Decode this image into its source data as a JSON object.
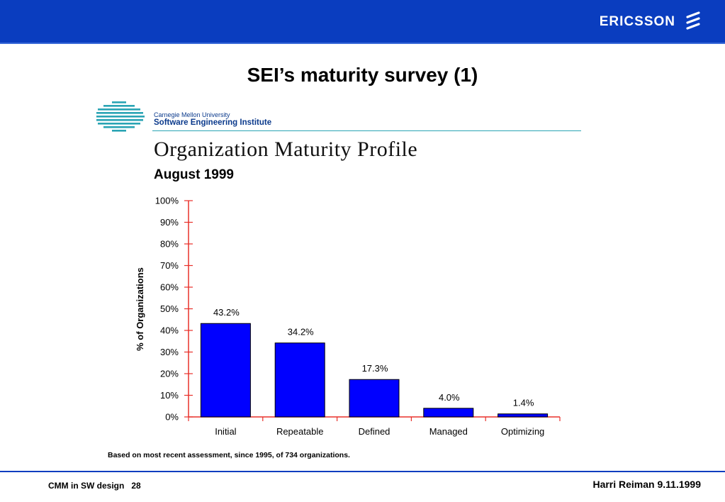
{
  "header": {
    "brand": "ERICSSON"
  },
  "slide": {
    "title": "SEI’s maturity survey (1)"
  },
  "logo": {
    "org_line1": "Carnegie Mellon University",
    "org_line2": "Software Engineering Institute"
  },
  "chart_data": {
    "type": "bar",
    "title": "Organization Maturity Profile",
    "subtitle": "August 1999",
    "ylabel": "% of Organizations",
    "xlabel": "",
    "categories": [
      "Initial",
      "Repeatable",
      "Defined",
      "Managed",
      "Optimizing"
    ],
    "values": [
      43.2,
      34.2,
      17.3,
      4.0,
      1.4
    ],
    "value_labels": [
      "43.2%",
      "34.2%",
      "17.3%",
      "4.0%",
      "1.4%"
    ],
    "yticks": [
      "0%",
      "10%",
      "20%",
      "30%",
      "40%",
      "50%",
      "60%",
      "70%",
      "80%",
      "90%",
      "100%"
    ],
    "ylim": [
      0,
      100
    ],
    "grid": false,
    "legend": "none",
    "colors": {
      "bar": "#0000ff",
      "axis": "#e8302a"
    }
  },
  "note": "Based on most recent assessment, since 1995, of 734 organizations.",
  "footer": {
    "left": "CMM in SW design",
    "page": "28",
    "right": "Harri Reiman 9.11.1999"
  }
}
